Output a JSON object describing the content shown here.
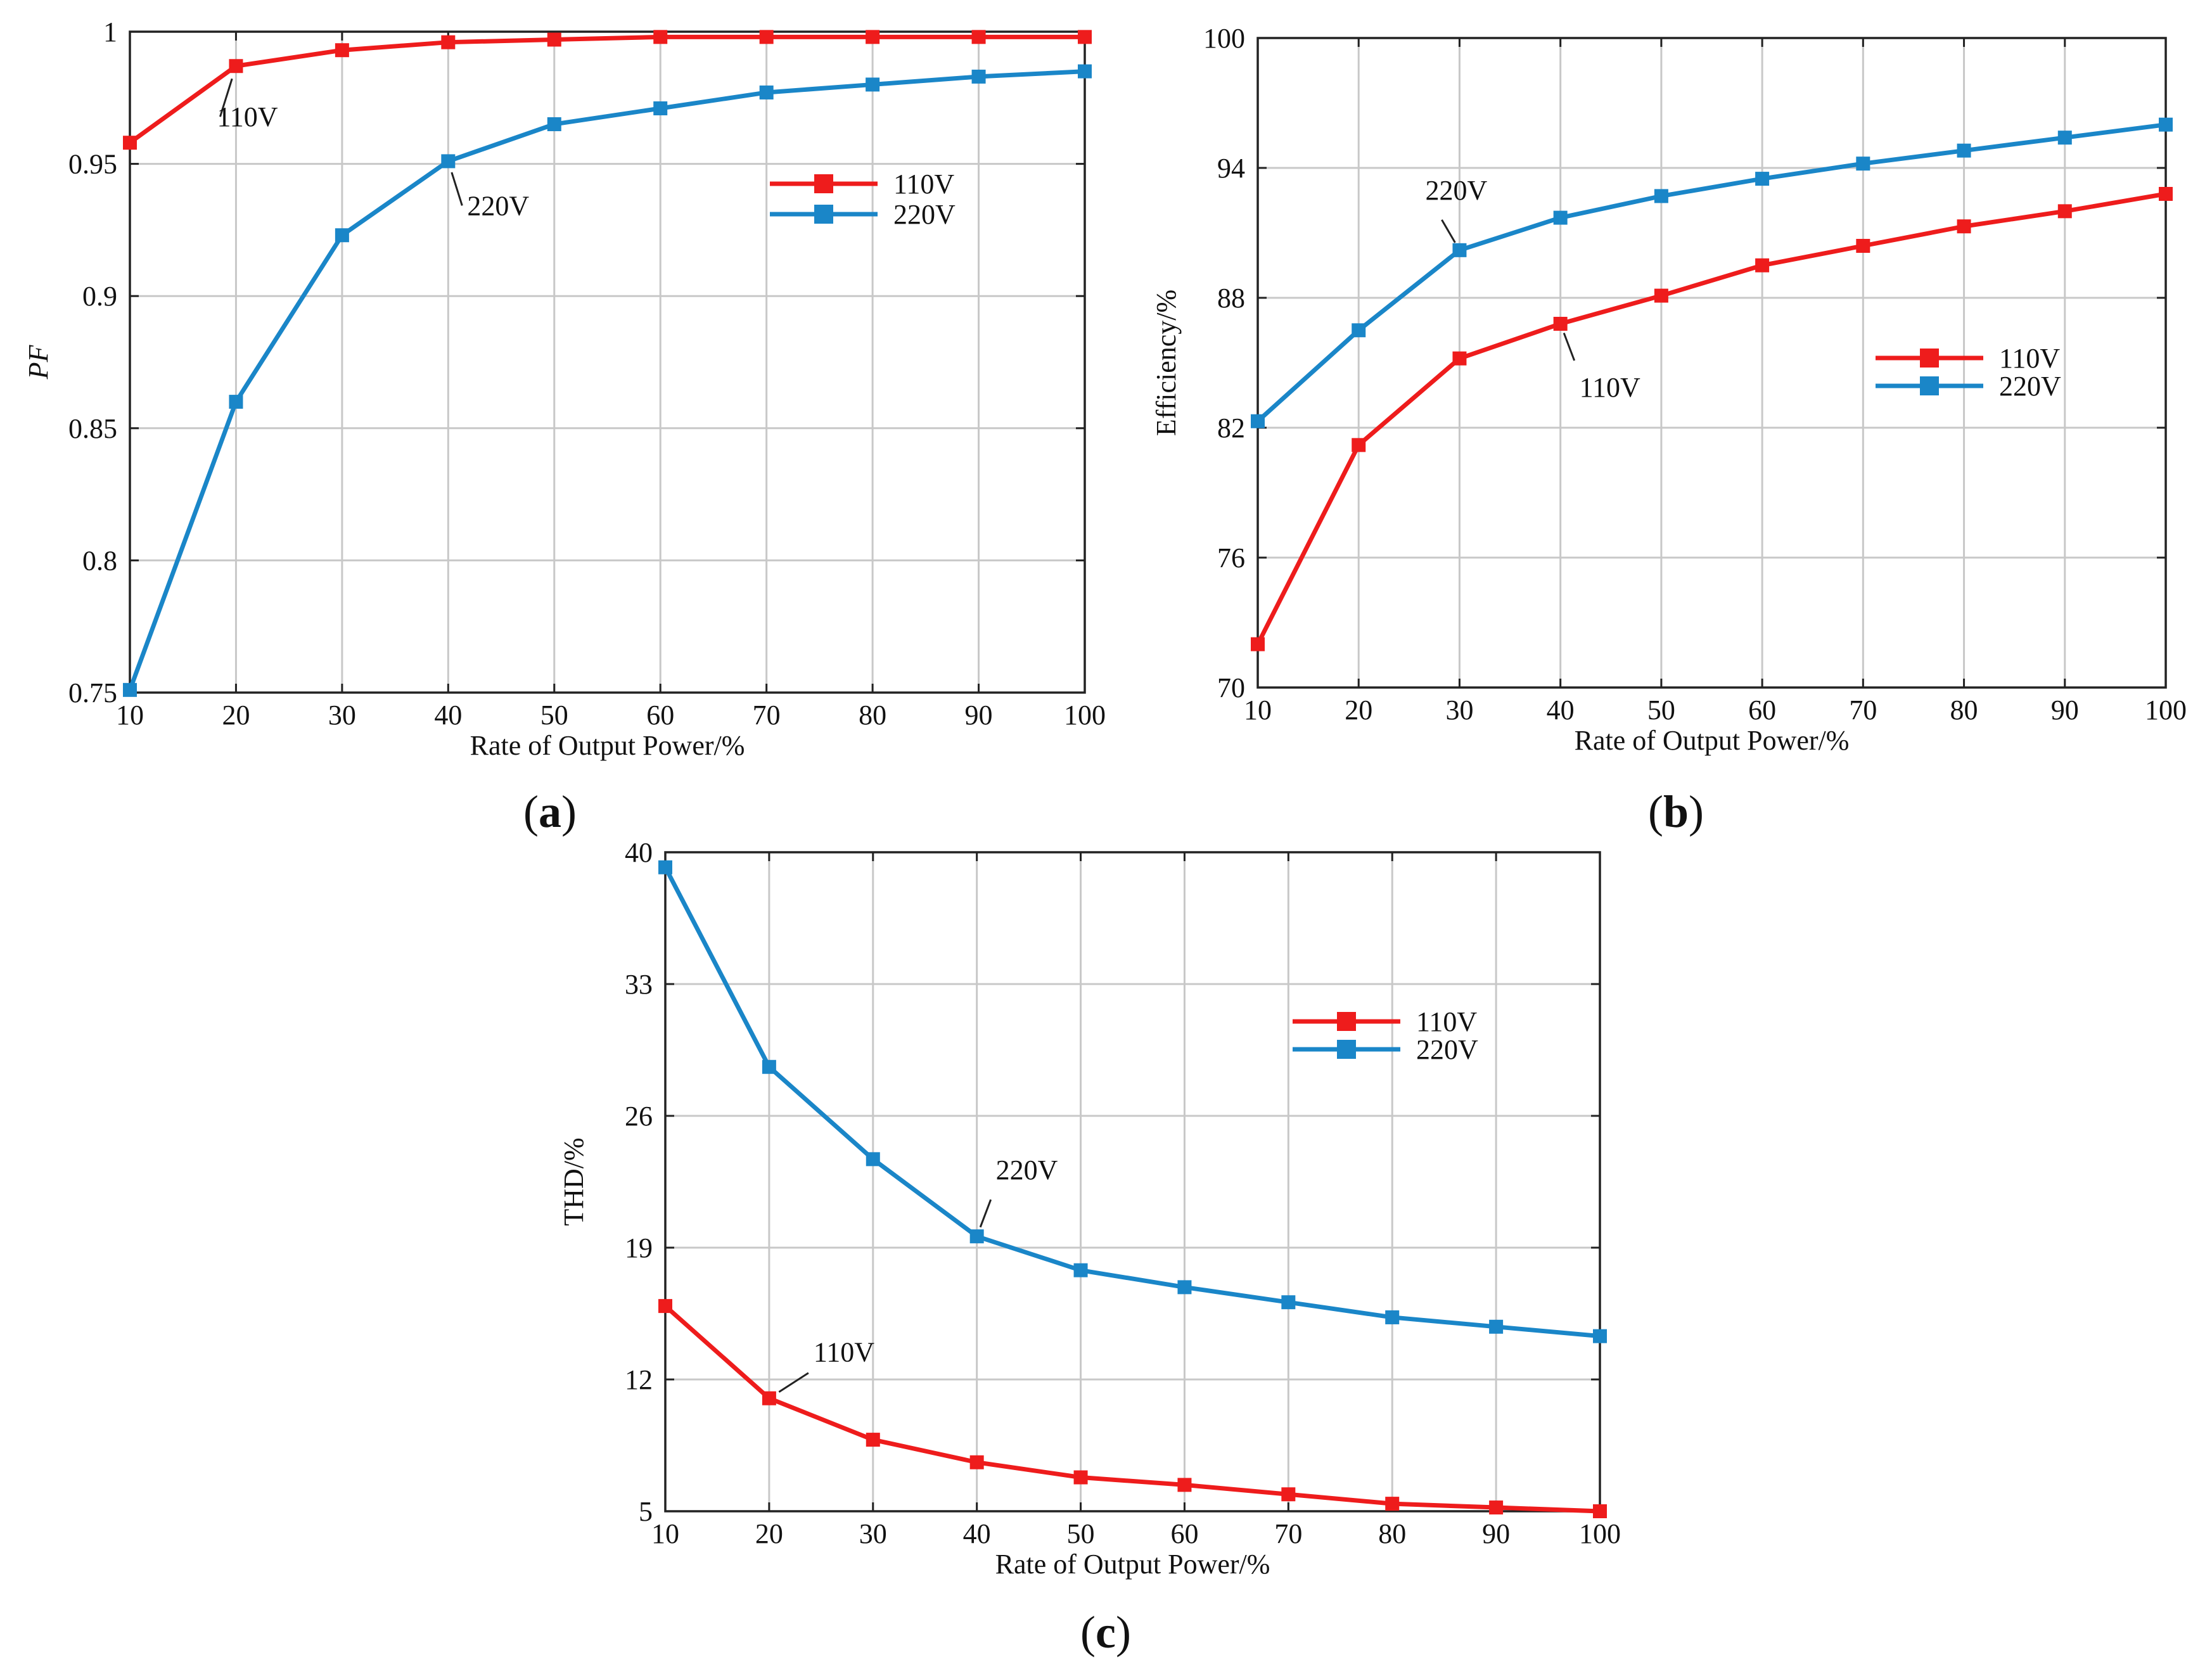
{
  "chart_data": [
    {
      "type": "line",
      "panel": "a",
      "panel_label": "a",
      "x": [
        10,
        20,
        30,
        40,
        50,
        60,
        70,
        80,
        90,
        100
      ],
      "xlim": [
        10,
        100
      ],
      "ylim": [
        0.75,
        1
      ],
      "xticks": [
        "10",
        "20",
        "30",
        "40",
        "50",
        "60",
        "70",
        "80",
        "90",
        "100"
      ],
      "yticks": [
        "0.75",
        "0.8",
        "0.85",
        "0.9",
        "0.95",
        "1"
      ],
      "xlabel": "Rate of Output Power/%",
      "ylabel": "PF",
      "grid": true,
      "legend_position": "upper-right",
      "series": [
        {
          "name": "110V",
          "color": "#ee1c1c",
          "values": [
            0.958,
            0.987,
            0.993,
            0.996,
            0.997,
            0.998,
            0.998,
            0.998,
            0.998,
            0.998
          ]
        },
        {
          "name": "220V",
          "color": "#1a86c8",
          "values": [
            0.751,
            0.86,
            0.923,
            0.951,
            0.965,
            0.971,
            0.977,
            0.98,
            0.983,
            0.985
          ]
        }
      ],
      "annotations": [
        {
          "text": "110V",
          "series": "110V",
          "x": 20
        },
        {
          "text": "220V",
          "series": "220V",
          "x": 40
        }
      ]
    },
    {
      "type": "line",
      "panel": "b",
      "panel_label": "b",
      "x": [
        10,
        20,
        30,
        40,
        50,
        60,
        70,
        80,
        90,
        100
      ],
      "xlim": [
        10,
        100
      ],
      "ylim": [
        70,
        100
      ],
      "xticks": [
        "10",
        "20",
        "30",
        "40",
        "50",
        "60",
        "70",
        "80",
        "90",
        "100"
      ],
      "yticks": [
        "70",
        "76",
        "82",
        "88",
        "94",
        "100"
      ],
      "xlabel": "Rate of Output Power/%",
      "ylabel": "Efficiency/%",
      "grid": true,
      "legend_position": "right",
      "series": [
        {
          "name": "110V",
          "color": "#ee1c1c",
          "values": [
            72.0,
            81.2,
            85.2,
            86.8,
            88.1,
            89.5,
            90.4,
            91.3,
            92.0,
            92.8
          ]
        },
        {
          "name": "220V",
          "color": "#1a86c8",
          "values": [
            82.3,
            86.5,
            90.2,
            91.7,
            92.7,
            93.5,
            94.2,
            94.8,
            95.4,
            96.0
          ]
        }
      ],
      "annotations": [
        {
          "text": "220V",
          "series": "220V",
          "x": 30
        },
        {
          "text": "110V",
          "series": "110V",
          "x": 40
        }
      ]
    },
    {
      "type": "line",
      "panel": "c",
      "panel_label": "c",
      "x": [
        10,
        20,
        30,
        40,
        50,
        60,
        70,
        80,
        90,
        100
      ],
      "xlim": [
        10,
        100
      ],
      "ylim": [
        5,
        40
      ],
      "xticks": [
        "10",
        "20",
        "30",
        "40",
        "50",
        "60",
        "70",
        "80",
        "90",
        "100"
      ],
      "yticks": [
        "5",
        "12",
        "19",
        "26",
        "33",
        "40"
      ],
      "xlabel": "Rate of Output Power/%",
      "ylabel": "THD/%",
      "grid": true,
      "legend_position": "upper-right",
      "series": [
        {
          "name": "110V",
          "color": "#ee1c1c",
          "values": [
            15.9,
            11.0,
            8.8,
            7.6,
            6.8,
            6.4,
            5.9,
            5.4,
            5.2,
            5.0
          ]
        },
        {
          "name": "220V",
          "color": "#1a86c8",
          "values": [
            39.2,
            28.6,
            23.7,
            19.6,
            17.8,
            16.9,
            16.1,
            15.3,
            14.8,
            14.3
          ]
        }
      ],
      "annotations": [
        {
          "text": "220V",
          "series": "220V",
          "x": 40
        },
        {
          "text": "110V",
          "series": "110V",
          "x": 20
        }
      ]
    }
  ]
}
